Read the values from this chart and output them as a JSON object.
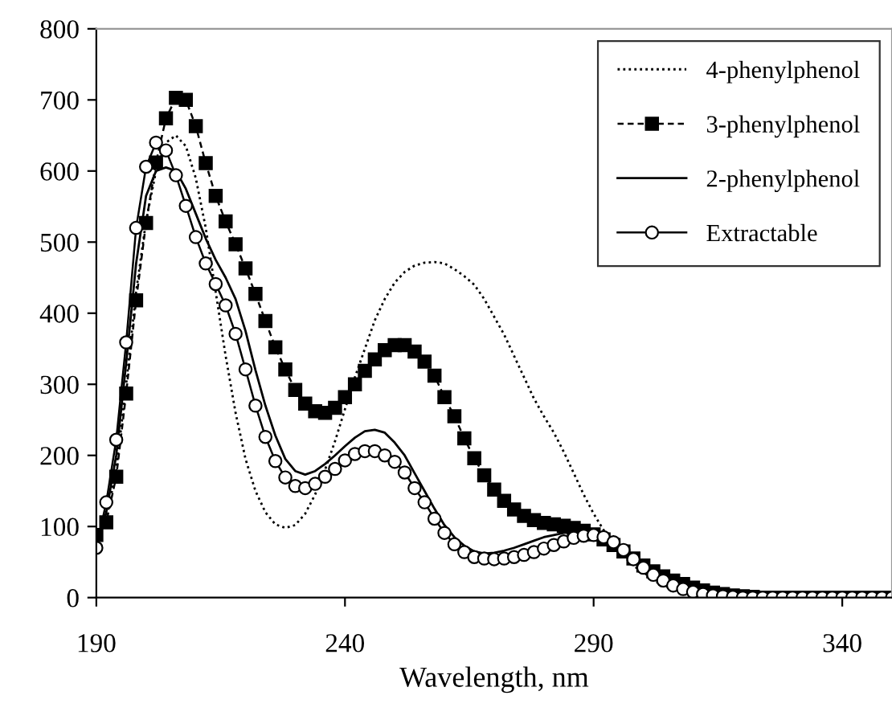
{
  "chart_data": {
    "type": "line",
    "xlabel": "Wavelength, nm",
    "x": [
      190,
      192,
      194,
      196,
      198,
      200,
      202,
      204,
      206,
      208,
      210,
      212,
      214,
      216,
      218,
      220,
      222,
      224,
      226,
      228,
      230,
      232,
      234,
      236,
      238,
      240,
      242,
      244,
      246,
      248,
      250,
      252,
      254,
      256,
      258,
      260,
      262,
      264,
      266,
      268,
      270,
      272,
      274,
      276,
      278,
      280,
      282,
      284,
      286,
      288,
      290,
      292,
      294,
      296,
      298,
      300,
      302,
      304,
      306,
      308,
      310,
      312,
      314,
      316,
      318,
      320,
      322,
      324,
      326,
      328,
      330,
      332,
      334,
      336,
      338,
      340,
      342,
      344,
      346,
      348,
      350
    ],
    "xlim": [
      190,
      350
    ],
    "xticks": [
      190,
      240,
      290,
      340
    ],
    "ylim": [
      0,
      800
    ],
    "yticks": [
      0,
      100,
      200,
      300,
      400,
      500,
      600,
      700,
      800
    ],
    "grid": false,
    "legend": "top right",
    "series": [
      {
        "name": "4-phenylphenol",
        "color": "#000000",
        "line_style": "dotted",
        "marker": "none",
        "values": [
          80,
          110,
          180,
          300,
          430,
          530,
          600,
          640,
          650,
          635,
          590,
          520,
          430,
          340,
          260,
          195,
          150,
          120,
          103,
          98,
          102,
          118,
          145,
          180,
          220,
          265,
          310,
          350,
          390,
          420,
          443,
          458,
          467,
          471,
          472,
          470,
          462,
          452,
          440,
          420,
          395,
          370,
          340,
          310,
          280,
          255,
          232,
          205,
          175,
          145,
          118,
          95,
          75,
          58,
          45,
          35,
          27,
          20,
          14,
          10,
          7,
          5,
          3,
          2,
          1,
          1,
          0,
          0,
          0,
          0,
          0,
          0,
          0,
          0,
          0,
          0,
          0,
          0,
          0,
          0,
          0
        ]
      },
      {
        "name": "3-phenylphenol",
        "color": "#000000",
        "line_style": "dashed",
        "marker": "square",
        "values": [
          88,
          106,
          170,
          287,
          418,
          527,
          612,
          674,
          703,
          700,
          663,
          611,
          565,
          529,
          497,
          463,
          427,
          389,
          352,
          321,
          292,
          273,
          262,
          260,
          267,
          282,
          300,
          319,
          335,
          348,
          355,
          355,
          346,
          332,
          312,
          282,
          255,
          224,
          196,
          172,
          152,
          136,
          124,
          115,
          109,
          105,
          103,
          101,
          98,
          94,
          89,
          82,
          74,
          65,
          55,
          45,
          37,
          30,
          24,
          19,
          14,
          10,
          7,
          5,
          3,
          2,
          1,
          0,
          0,
          0,
          0,
          0,
          0,
          0,
          0,
          0,
          0,
          0,
          0,
          0,
          0
        ]
      },
      {
        "name": "2-phenylphenol",
        "color": "#000000",
        "line_style": "solid",
        "marker": "none",
        "values": [
          75,
          120,
          200,
          330,
          470,
          565,
          600,
          605,
          600,
          575,
          540,
          505,
          475,
          450,
          420,
          375,
          320,
          270,
          228,
          195,
          178,
          173,
          178,
          188,
          200,
          213,
          225,
          234,
          236,
          232,
          218,
          200,
          175,
          150,
          125,
          102,
          85,
          73,
          65,
          62,
          63,
          66,
          70,
          75,
          80,
          85,
          88,
          91,
          92,
          92,
          90,
          86,
          78,
          68,
          56,
          45,
          35,
          27,
          20,
          14,
          10,
          7,
          5,
          4,
          3,
          2,
          1,
          0,
          0,
          0,
          0,
          0,
          0,
          0,
          0,
          0,
          0,
          0,
          0,
          0,
          0
        ]
      },
      {
        "name": "Extractable",
        "color": "#000000",
        "line_style": "solid",
        "marker": "circle",
        "values": [
          70,
          134,
          222,
          359,
          520,
          606,
          640,
          629,
          594,
          551,
          507,
          470,
          441,
          411,
          371,
          321,
          270,
          226,
          192,
          169,
          157,
          154,
          160,
          170,
          181,
          193,
          202,
          206,
          206,
          200,
          191,
          176,
          154,
          134,
          111,
          91,
          75,
          64,
          57,
          55,
          54,
          55,
          57,
          60,
          64,
          69,
          74,
          79,
          84,
          87,
          88,
          85,
          78,
          67,
          54,
          42,
          32,
          24,
          17,
          12,
          8,
          5,
          3,
          2,
          1,
          0,
          0,
          0,
          0,
          0,
          0,
          0,
          0,
          0,
          0,
          0,
          0,
          0,
          0,
          0,
          0
        ]
      }
    ]
  }
}
